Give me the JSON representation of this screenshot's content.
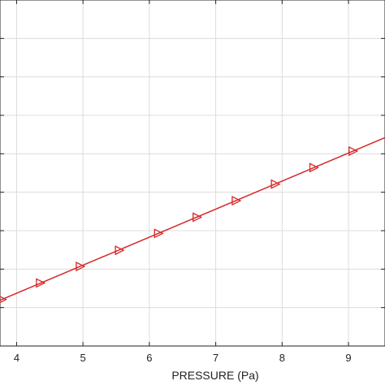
{
  "chart_data": {
    "type": "line",
    "title": "",
    "xlabel": "PRESSURE (Pa)",
    "ylabel": "",
    "xlim": [
      3.75,
      9.55
    ],
    "ylim": [
      0,
      9
    ],
    "x_ticks": [
      4,
      5,
      6,
      7,
      8,
      9
    ],
    "x_tick_labels": [
      "4",
      "5",
      "6",
      "7",
      "8",
      "9"
    ],
    "y_gridlines": [
      1,
      2,
      3,
      4,
      5,
      6,
      7,
      8
    ],
    "grid": true,
    "series": [
      {
        "marker": "triangle-right",
        "color": "#d62728",
        "x": [
          3.78,
          4.36,
          4.96,
          5.55,
          6.14,
          6.72,
          7.31,
          7.9,
          8.48,
          9.07
        ],
        "y": [
          1.21,
          1.64,
          2.07,
          2.49,
          2.93,
          3.35,
          3.78,
          4.21,
          4.64,
          5.07
        ]
      }
    ],
    "line_end": {
      "x": [
        3.75,
        9.55
      ],
      "y": [
        1.19,
        5.42
      ]
    }
  }
}
